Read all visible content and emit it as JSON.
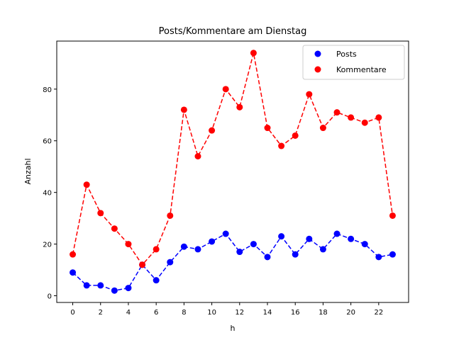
{
  "chart_data": {
    "type": "line",
    "title": "Posts/Kommentare am Dienstag",
    "xlabel": "h",
    "ylabel": "Anzahl",
    "x": [
      0,
      1,
      2,
      3,
      4,
      5,
      6,
      7,
      8,
      9,
      10,
      11,
      12,
      13,
      14,
      15,
      16,
      17,
      18,
      19,
      20,
      21,
      22,
      23
    ],
    "xlim": [
      -1.15,
      24.15
    ],
    "ylim": [
      -2.6,
      98.6
    ],
    "xticks": [
      0,
      2,
      4,
      6,
      8,
      10,
      12,
      14,
      16,
      18,
      20,
      22
    ],
    "yticks": [
      0,
      20,
      40,
      60,
      80
    ],
    "grid": false,
    "legend_position": "top-right",
    "series": [
      {
        "name": "Posts",
        "color": "#0000ff",
        "marker": "circle",
        "line_style": "dashed",
        "values": [
          9,
          4,
          4,
          2,
          3,
          12,
          6,
          13,
          19,
          18,
          21,
          24,
          17,
          20,
          15,
          23,
          16,
          22,
          18,
          24,
          22,
          20,
          15,
          16
        ]
      },
      {
        "name": "Kommentare",
        "color": "#ff0000",
        "marker": "circle",
        "line_style": "dashed",
        "values": [
          16,
          43,
          32,
          26,
          20,
          12,
          18,
          31,
          72,
          54,
          64,
          80,
          73,
          94,
          65,
          58,
          62,
          78,
          65,
          71,
          69,
          67,
          69,
          31
        ]
      }
    ]
  }
}
